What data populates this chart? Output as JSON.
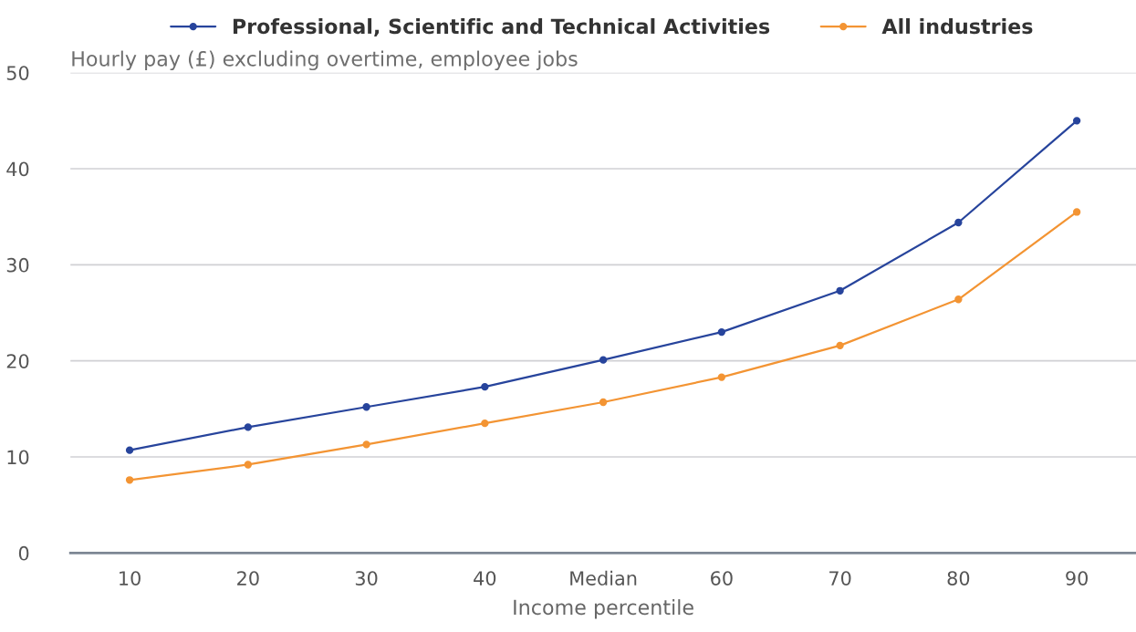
{
  "chart_data": {
    "type": "line",
    "subtitle": "Hourly pay (£) excluding overtime, employee jobs",
    "xlabel": "Income percentile",
    "categories": [
      "10",
      "20",
      "30",
      "40",
      "Median",
      "60",
      "70",
      "80",
      "90"
    ],
    "series": [
      {
        "name": "Professional, Scientific and Technical Activities",
        "color": "#27449c",
        "values": [
          10.7,
          13.1,
          15.2,
          17.3,
          20.1,
          23.0,
          27.3,
          34.4,
          45.0
        ]
      },
      {
        "name": "All industries",
        "color": "#f39433",
        "values": [
          7.6,
          9.2,
          11.3,
          13.5,
          15.7,
          18.3,
          21.6,
          26.4,
          35.5
        ]
      }
    ],
    "ylim": [
      0,
      50
    ],
    "yticks": [
      0,
      10,
      20,
      30,
      40,
      50
    ],
    "grid": "y",
    "legend": "top",
    "marker": "circle",
    "line_style": "solid"
  }
}
